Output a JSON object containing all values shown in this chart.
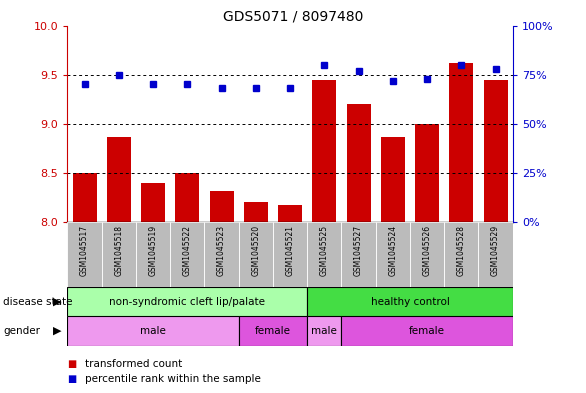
{
  "title": "GDS5071 / 8097480",
  "samples": [
    "GSM1045517",
    "GSM1045518",
    "GSM1045519",
    "GSM1045522",
    "GSM1045523",
    "GSM1045520",
    "GSM1045521",
    "GSM1045525",
    "GSM1045527",
    "GSM1045524",
    "GSM1045526",
    "GSM1045528",
    "GSM1045529"
  ],
  "bar_values": [
    8.5,
    8.87,
    8.4,
    8.5,
    8.32,
    8.2,
    8.17,
    9.45,
    9.2,
    8.87,
    9.0,
    9.62,
    9.45
  ],
  "percentile_values": [
    70,
    75,
    70,
    70,
    68,
    68,
    68,
    80,
    77,
    72,
    73,
    80,
    78
  ],
  "bar_color": "#cc0000",
  "dot_color": "#0000cc",
  "ylim_left": [
    8,
    10
  ],
  "ylim_right": [
    0,
    100
  ],
  "yticks_left": [
    8,
    8.5,
    9,
    9.5,
    10
  ],
  "yticks_right": [
    0,
    25,
    50,
    75,
    100
  ],
  "grid_values": [
    8.5,
    9.0,
    9.5
  ],
  "disease_state_groups": [
    {
      "label": "non-syndromic cleft lip/palate",
      "start": 0,
      "end": 6,
      "color": "#aaffaa"
    },
    {
      "label": "healthy control",
      "start": 7,
      "end": 12,
      "color": "#44dd44"
    }
  ],
  "gender_groups": [
    {
      "label": "male",
      "start": 0,
      "end": 4,
      "color": "#ee99ee"
    },
    {
      "label": "female",
      "start": 5,
      "end": 6,
      "color": "#dd55dd"
    },
    {
      "label": "male",
      "start": 7,
      "end": 7,
      "color": "#ee99ee"
    },
    {
      "label": "female",
      "start": 8,
      "end": 12,
      "color": "#dd55dd"
    }
  ],
  "legend_items": [
    {
      "label": "transformed count",
      "color": "#cc0000"
    },
    {
      "label": "percentile rank within the sample",
      "color": "#0000cc"
    }
  ],
  "bg_color": "#ffffff",
  "tick_label_bg": "#bbbbbb",
  "right_axis_color": "#0000cc",
  "left_axis_color": "#cc0000"
}
